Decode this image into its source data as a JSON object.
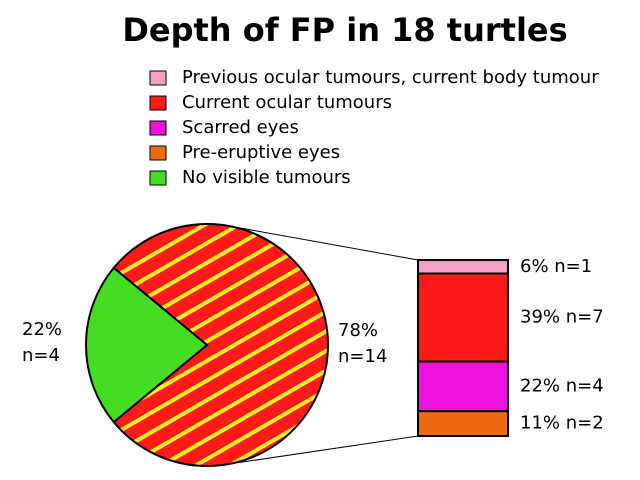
{
  "chart_data": {
    "type": "bar_of_pie",
    "title": "Depth of FP in 18 turtles",
    "pie": {
      "names": [
        null,
        "No visible tumours"
      ],
      "values": [
        78,
        22
      ],
      "value_labels": [
        "78%",
        "22%"
      ],
      "counts": [
        14,
        4
      ],
      "count_labels": [
        "n=14",
        "n=4"
      ],
      "colors": [
        "#ff1a1a",
        "#44dd22"
      ],
      "hatch_color": "#ffee22"
    },
    "bar": {
      "categories": [
        "Previous ocular tumours, current body tumour",
        "Current ocular tumours",
        "Scarred eyes",
        "Pre-eruptive eyes"
      ],
      "values": [
        6,
        39,
        22,
        11
      ],
      "counts": [
        1,
        7,
        4,
        2
      ],
      "value_labels": [
        "6% n=1",
        "39% n=7",
        "22% n=4",
        "11% n=2"
      ],
      "colors": [
        "#f4a0c4",
        "#ff1a1a",
        "#ee11dd",
        "#ee6a10"
      ]
    }
  }
}
